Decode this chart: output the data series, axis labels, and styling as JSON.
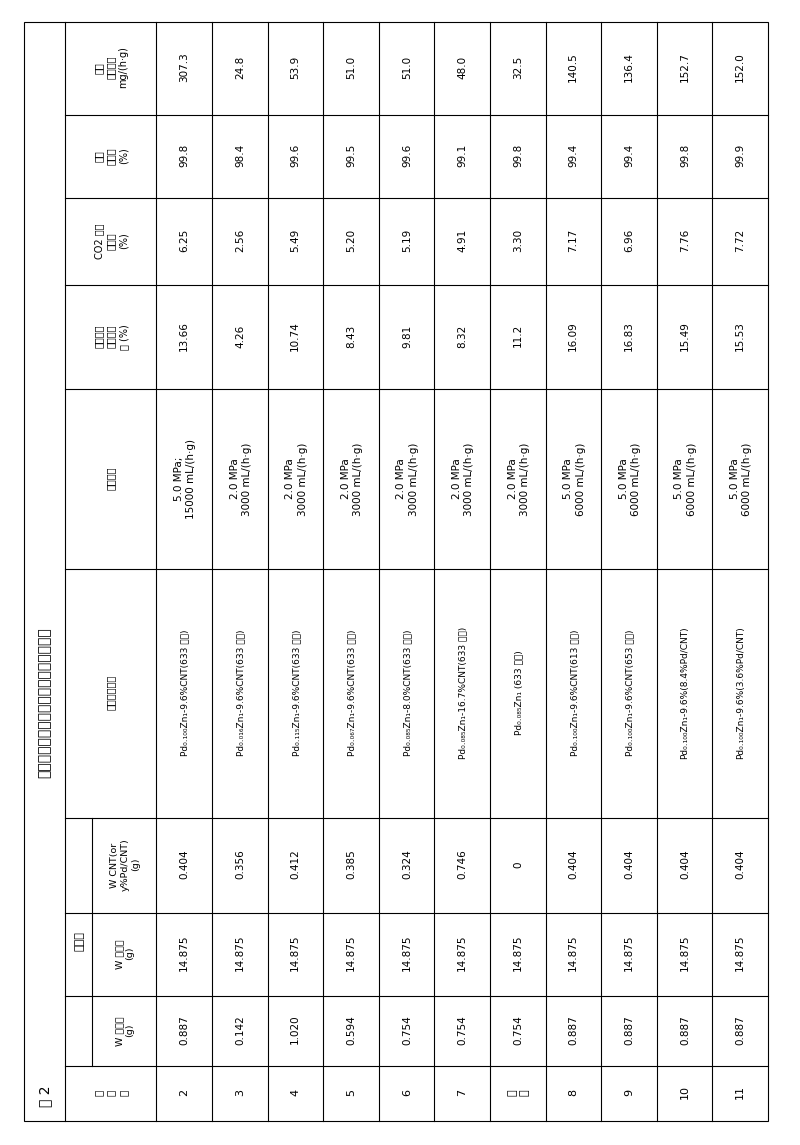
{
  "title_num": "表 2",
  "title_text": "催化剂的组成、制备条件及活性评价结果",
  "col_headers": [
    "实\n施\n例",
    "W 氧化锌\n(g)",
    "W 硝酸锌\n(g)",
    "W CNT(or\ny%Pd/CNT)\n(g)",
    "催化剂化学式",
    "反应条件",
    "逆水煤气\n变换转化\n率 (%)",
    "CO2 加氢\n转化率\n(%)",
    "甲醇\n选择性\n(%)",
    "甲醇\n时空产率\nmg/(h·g)"
  ],
  "group_header": "投料量",
  "group_span": [
    1,
    3
  ],
  "rows": [
    [
      "2",
      "0.887",
      "14.875",
      "0.404",
      "Pd0.100Zn1-9.6%CNT(633 焙烧)",
      "5.0 MPa;\n15000 mL/(h·g)",
      "13.66",
      "6.25",
      "99.8",
      "307.3"
    ],
    [
      "3",
      "0.142",
      "14.875",
      "0.356",
      "Pd0.016Zn1-9.6%CNT(633 焙烧)",
      "2.0 MPa\n3000 mL/(h·g)",
      "4.26",
      "2.56",
      "98.4",
      "24.8"
    ],
    [
      "4",
      "1.020",
      "14.875",
      "0.412",
      "Pd0.115Zn1-9.6%CNT(633 焙烧)",
      "2.0 MPa\n3000 mL/(h·g)",
      "10.74",
      "5.49",
      "99.6",
      "53.9"
    ],
    [
      "5",
      "0.594",
      "14.875",
      "0.385",
      "Pd0.067Zn1-9.6%CNT(633 焙烧)",
      "2.0 MPa\n3000 mL/(h·g)",
      "8.43",
      "5.20",
      "99.5",
      "51.0"
    ],
    [
      "6",
      "0.754",
      "14.875",
      "0.324",
      "Pd0.085Zn1-8.0%CNT(633 焙烧)",
      "2.0 MPa\n3000 mL/(h·g)",
      "9.81",
      "5.19",
      "99.6",
      "51.0"
    ],
    [
      "7",
      "0.754",
      "14.875",
      "0.746",
      "Pd0.085Zn1-16.7%CNT(633 焙烧)",
      "2.0 MPa\n3000 mL/(h·g)",
      "8.32",
      "4.91",
      "99.1",
      "48.0"
    ],
    [
      "对\n比",
      "0.754",
      "14.875",
      "0",
      "Pd0.085Zn1 (633 焙烧)",
      "2.0 MPa\n3000 mL/(h·g)",
      "11.2",
      "3.30",
      "99.8",
      "32.5"
    ],
    [
      "8",
      "0.887",
      "14.875",
      "0.404",
      "Pd0.100Zn1-9.6%CNT(613 焙烧)",
      "5.0 MPa\n6000 mL/(h·g)",
      "16.09",
      "7.17",
      "99.4",
      "140.5"
    ],
    [
      "9",
      "0.887",
      "14.875",
      "0.404",
      "Pd0.100Zn1-9.6%CNT(653 焙烧)",
      "5.0 MPa\n6000 mL/(h·g)",
      "16.83",
      "6.96",
      "99.4",
      "136.4"
    ],
    [
      "10",
      "0.887",
      "14.875",
      "0.404",
      "Pd0.100Zn1-9.6%(8.4%Pd/CNT)",
      "5.0 MPa\n6000 mL/(h·g)",
      "15.49",
      "7.76",
      "99.8",
      "152.7"
    ],
    [
      "11",
      "0.887",
      "14.875",
      "0.404",
      "Pd0.100Zn1-9.6%(3.6%Pd/CNT)",
      "5.0 MPa\n6000 mL/(h·g)",
      "15.53",
      "7.72",
      "99.9",
      "152.0"
    ]
  ],
  "subscript_map": {
    "Pd0.100Zn1": "Pd₀.₁₀₀Zn₁",
    "Pd0.016Zn1": "Pd₀.₀₁₆Zn₁",
    "Pd0.115Zn1": "Pd₀.₁₁₅Zn₁",
    "Pd0.067Zn1": "Pd₀.₀₆₇Zn₁",
    "Pd0.085Zn1": "Pd₀.₀₈₅Zn₁"
  },
  "bg_color": "#ffffff",
  "line_color": "#000000",
  "text_color": "#000000"
}
